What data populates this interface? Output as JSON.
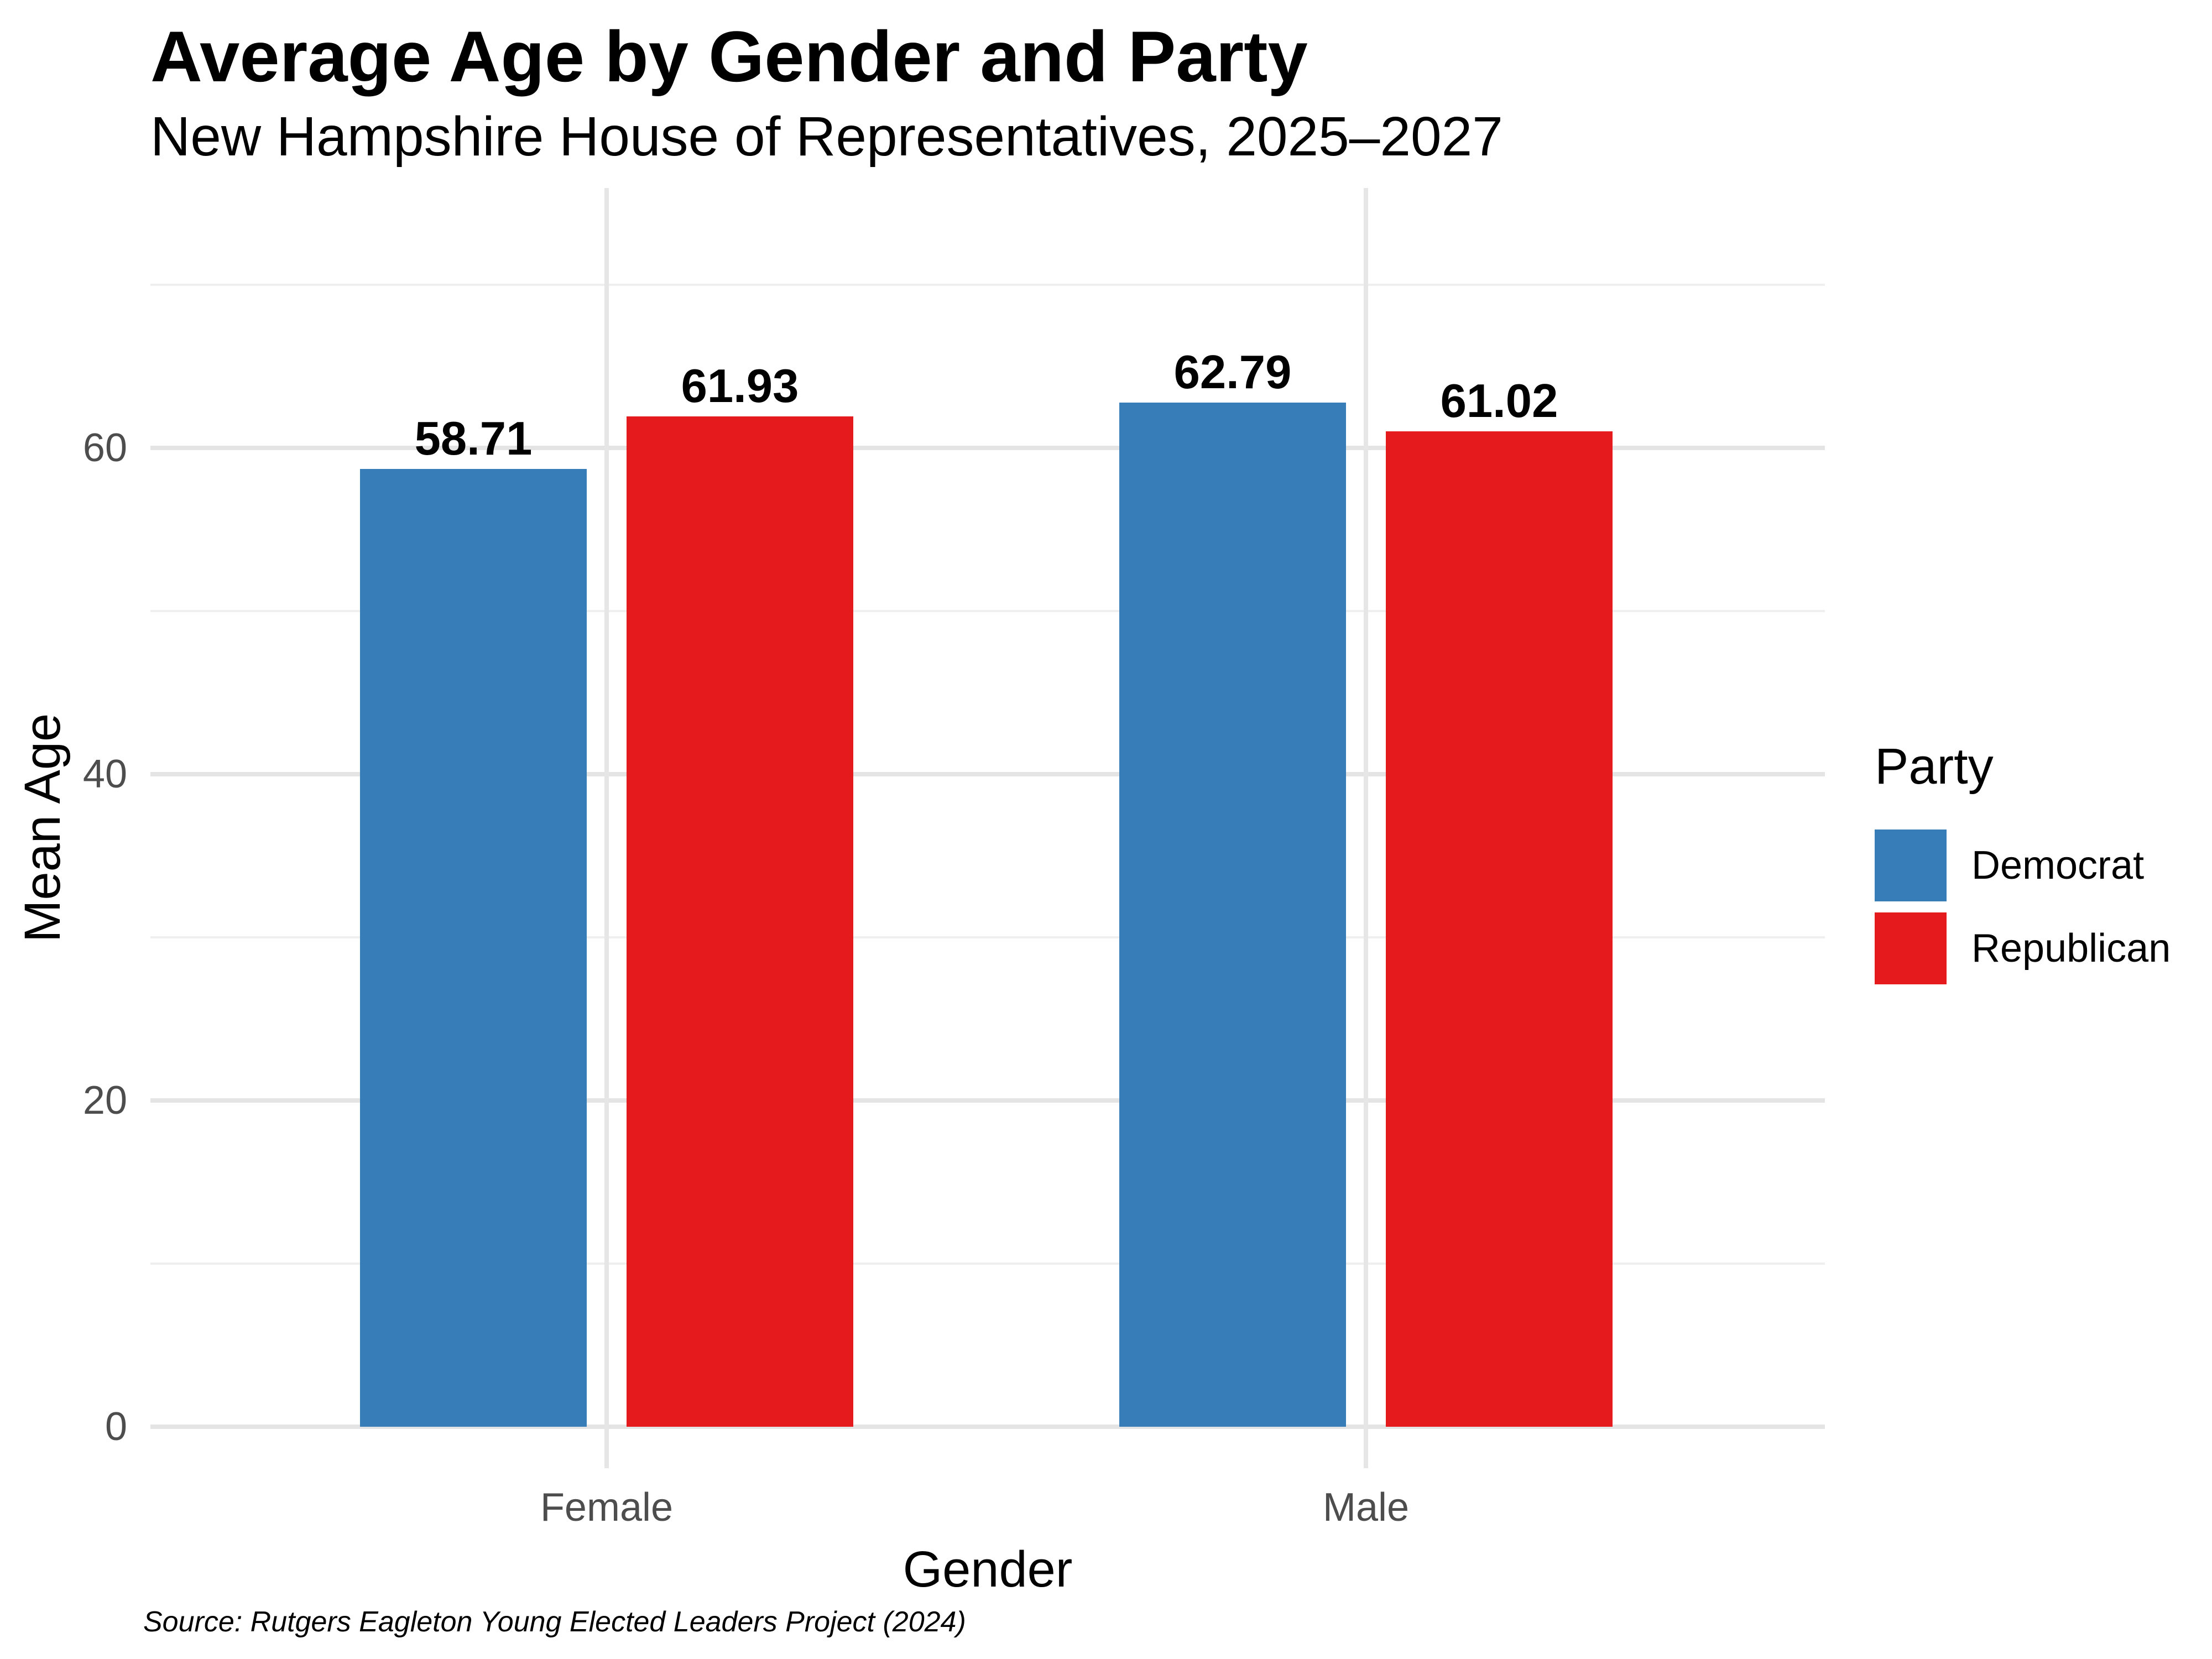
{
  "chart_data": {
    "type": "bar",
    "title": "Average Age by Gender and Party",
    "subtitle": "New Hampshire House of Representatives, 2025–2027",
    "source_note": "Source: Rutgers Eagleton Young Elected Leaders Project (2024)",
    "categories": [
      "Female",
      "Male"
    ],
    "series": [
      {
        "name": "Democrat",
        "color": "#377EB8",
        "values": [
          58.71,
          62.79
        ]
      },
      {
        "name": "Republican",
        "color": "#E41A1C",
        "values": [
          61.93,
          61.02
        ]
      }
    ],
    "value_labels": {
      "Female": {
        "Democrat": "58.71",
        "Republican": "61.93"
      },
      "Male": {
        "Democrat": "62.79",
        "Republican": "61.02"
      }
    },
    "xlabel": "Gender",
    "ylabel": "Mean Age",
    "ylim": [
      0,
      76
    ],
    "yticks": [
      0,
      20,
      40,
      60
    ],
    "grid": {
      "horizontal_step": 10,
      "horizontal_major": [
        0,
        20,
        40,
        60
      ],
      "horizontal_minor": [
        10,
        30,
        50,
        70
      ],
      "vertical": "at category centers"
    },
    "legend": {
      "title": "Party",
      "position": "right",
      "entries": [
        "Democrat",
        "Republican"
      ]
    },
    "style": {
      "background": "#ffffff",
      "gridline_major_color": "#e4e4e4",
      "gridline_minor_color": "#efefef",
      "tick_label_color": "#4d4d4d",
      "text_color": "#000000"
    }
  }
}
